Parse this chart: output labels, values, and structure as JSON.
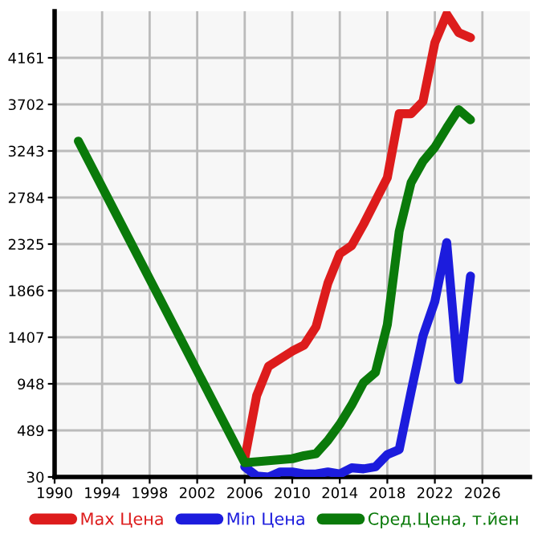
{
  "chart_data": {
    "type": "line",
    "xlim": [
      1990,
      2030
    ],
    "xticks": [
      1990,
      1994,
      1998,
      2002,
      2006,
      2010,
      2014,
      2018,
      2022,
      2026
    ],
    "ylim": [
      30,
      4620
    ],
    "yticks": [
      30,
      489,
      948,
      1407,
      1866,
      2325,
      2784,
      3243,
      3702,
      4161
    ],
    "grid": true,
    "legend": "bottom",
    "marker": "none",
    "line_style": "solid",
    "series": [
      {
        "name": "Max Цена",
        "color": "#dd1c1c",
        "x": [
          2006,
          2007,
          2008,
          2010,
          2011,
          2012,
          2013,
          2014,
          2015,
          2016,
          2017,
          2018,
          2019,
          2020,
          2021,
          2022,
          2023,
          2024,
          2025
        ],
        "values": [
          210,
          830,
          1120,
          1270,
          1330,
          1510,
          1940,
          2230,
          2310,
          2520,
          2750,
          2980,
          3610,
          3610,
          3730,
          4310,
          4590,
          4410,
          4360
        ]
      },
      {
        "name": "Min Цена",
        "color": "#1c1cdd",
        "x": [
          2006,
          2007,
          2008,
          2009,
          2010,
          2011,
          2012,
          2013,
          2014,
          2015,
          2016,
          2017,
          2018,
          2019,
          2020,
          2021,
          2022,
          2023,
          2024,
          2025
        ],
        "values": [
          130,
          40,
          30,
          80,
          80,
          60,
          60,
          80,
          60,
          120,
          110,
          130,
          250,
          300,
          870,
          1420,
          1760,
          2340,
          990,
          2010
        ]
      },
      {
        "name": "Сред.Цена, т.йен",
        "color": "#0a7a0a",
        "x": [
          1992,
          2006,
          2010,
          2011,
          2012,
          2013,
          2014,
          2015,
          2016,
          2017,
          2018,
          2019,
          2020,
          2021,
          2022,
          2023,
          2024,
          2025
        ],
        "values": [
          3340,
          170,
          210,
          240,
          260,
          390,
          550,
          740,
          960,
          1060,
          1530,
          2450,
          2930,
          3140,
          3280,
          3470,
          3650,
          3550
        ]
      }
    ]
  }
}
